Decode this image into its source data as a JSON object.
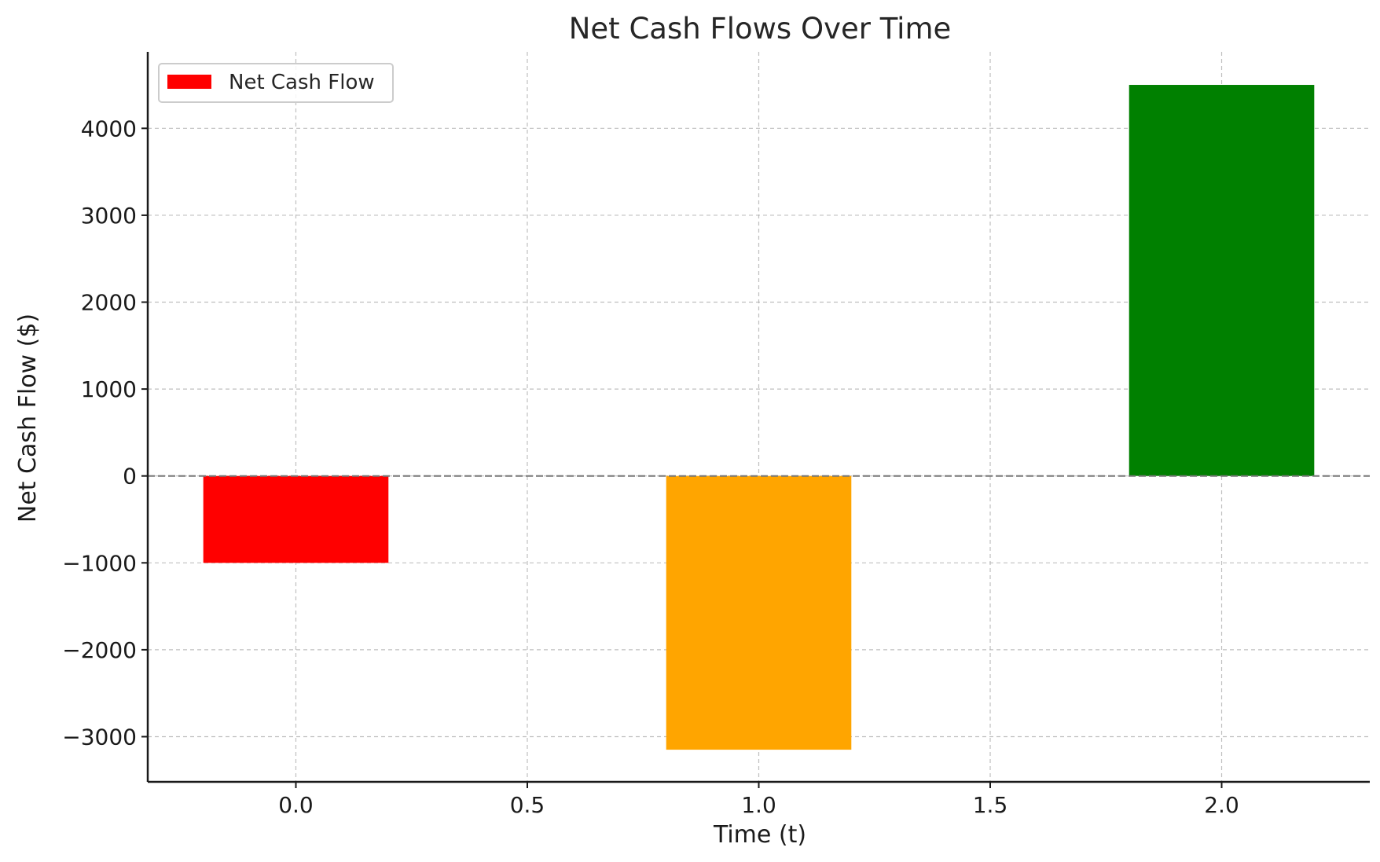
{
  "chart_data": {
    "type": "bar",
    "title": "Net Cash Flows Over Time",
    "xlabel": "Time (t)",
    "ylabel": "Net Cash Flow ($)",
    "x": [
      0,
      1,
      2
    ],
    "values": [
      -1000,
      -3150,
      4500
    ],
    "bar_width": 0.4,
    "colors": [
      "#ff0000",
      "#ffa500",
      "#008000"
    ],
    "series": [
      {
        "name": "Net Cash Flow",
        "values": [
          -1000,
          -3150,
          4500
        ]
      }
    ],
    "legend": {
      "label": "Net Cash Flow",
      "color": "#ff0000",
      "placement": "top-left"
    },
    "xlim": [
      -0.32,
      2.32
    ],
    "ylim": [
      -3520,
      4880
    ],
    "xticks": [
      0.0,
      0.5,
      1.0,
      1.5,
      2.0
    ],
    "xtick_labels": [
      "0.0",
      "0.5",
      "1.0",
      "1.5",
      "2.0"
    ],
    "yticks": [
      -3000,
      -2000,
      -1000,
      0,
      1000,
      2000,
      3000,
      4000
    ],
    "ytick_labels": [
      "−3000",
      "−2000",
      "−1000",
      "0",
      "1000",
      "2000",
      "3000",
      "4000"
    ],
    "grid": true,
    "zero_line": true
  }
}
